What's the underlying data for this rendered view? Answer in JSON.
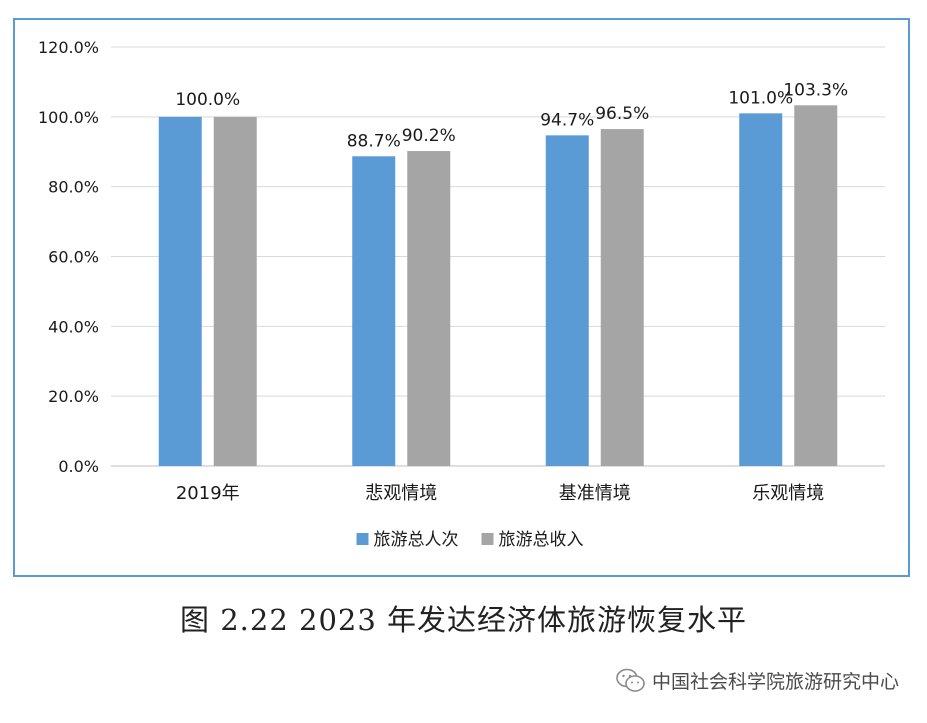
{
  "chart_data": {
    "type": "bar",
    "categories": [
      "2019年",
      "悲观情境",
      "基准情境",
      "乐观情境"
    ],
    "series": [
      {
        "name": "旅游总人次",
        "values": [
          100.0,
          88.7,
          94.7,
          101.0
        ],
        "color": "#5b9bd5",
        "labels": [
          "",
          "88.7%",
          "94.7%",
          "101.0%"
        ]
      },
      {
        "name": "旅游总收入",
        "values": [
          100.0,
          90.2,
          96.5,
          103.3
        ],
        "color": "#a5a5a5",
        "labels": [
          "",
          "90.2%",
          "96.5%",
          "103.3%"
        ]
      }
    ],
    "center_labels": [
      "100.0%",
      "",
      "",
      ""
    ],
    "ylim": [
      0,
      120
    ],
    "yticks": [
      "0.0%",
      "20.0%",
      "40.0%",
      "60.0%",
      "80.0%",
      "100.0%",
      "120.0%"
    ],
    "grid": true,
    "legend_position": "bottom"
  },
  "caption": "图 2.22 2023 年发达经济体旅游恢复水平",
  "watermark": {
    "text": "中国社会科学院旅游研究中心",
    "icon": "wechat-icon"
  },
  "colors": {
    "frame": "#5b9bd5",
    "grid": "#d9d9d9",
    "text": "#1a1a1a"
  }
}
